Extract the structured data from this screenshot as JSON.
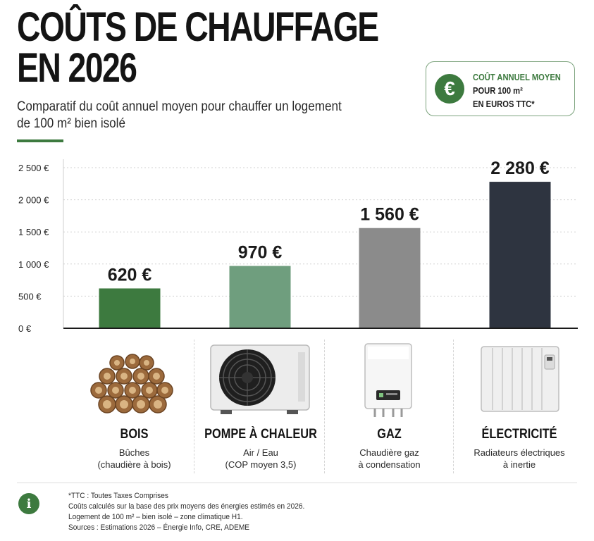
{
  "header": {
    "title_line1": "COÛTS DE CHAUFFAGE",
    "title_line2": "EN 2026",
    "subtitle_line1": "Comparatif du coût annuel moyen pour chauffer un logement",
    "subtitle_line2": "de 100 m² bien isolé"
  },
  "badge": {
    "icon": "euro-icon",
    "symbol": "€",
    "line1": "COÛT ANNUEL MOYEN",
    "line2": "POUR 100 m²",
    "line3": "EN EUROS TTC*"
  },
  "colors": {
    "accent": "#3d7a3f",
    "bar_bois": "#3d7a3f",
    "bar_pac": "#6f9e7e",
    "bar_gaz": "#8b8b8b",
    "bar_elec": "#2e3440"
  },
  "chart_data": {
    "type": "bar",
    "categories": [
      "BOIS",
      "POMPE À CHALEUR",
      "GAZ",
      "ÉLECTRICITÉ"
    ],
    "values": [
      620,
      970,
      1560,
      2280
    ],
    "value_labels": [
      "620 €",
      "970 €",
      "1 560 €",
      "2 280 €"
    ],
    "ylim": [
      0,
      2500
    ],
    "yticks": [
      0,
      500,
      1000,
      1500,
      2000,
      2500
    ],
    "ytick_labels": [
      "0 €",
      "500 €",
      "1 000 €",
      "1 500 €",
      "2 000 €",
      "2 500 €"
    ],
    "grid": true
  },
  "categories": [
    {
      "name": "BOIS",
      "desc1": "Bûches",
      "desc2": "(chaudière à bois)",
      "icon": "firewood-icon"
    },
    {
      "name": "POMPE À CHALEUR",
      "desc1": "Air / Eau",
      "desc2": "(COP moyen 3,5)",
      "icon": "heat-pump-icon"
    },
    {
      "name": "GAZ",
      "desc1": "Chaudière gaz",
      "desc2": "à condensation",
      "icon": "gas-boiler-icon"
    },
    {
      "name": "ÉLECTRICITÉ",
      "desc1": "Radiateurs électriques",
      "desc2": "à inertie",
      "icon": "electric-radiator-icon"
    }
  ],
  "footer": {
    "icon": "info-icon",
    "symbol": "i",
    "note1": "*TTC : Toutes Taxes Comprises",
    "note2": "Coûts calculés sur la base des prix moyens des énergies estimés en 2026.",
    "note3": "Logement de 100 m² – bien isolé – zone climatique H1.",
    "note4": "Sources : Estimations 2026 – Énergie Info, CRE, ADEME"
  }
}
